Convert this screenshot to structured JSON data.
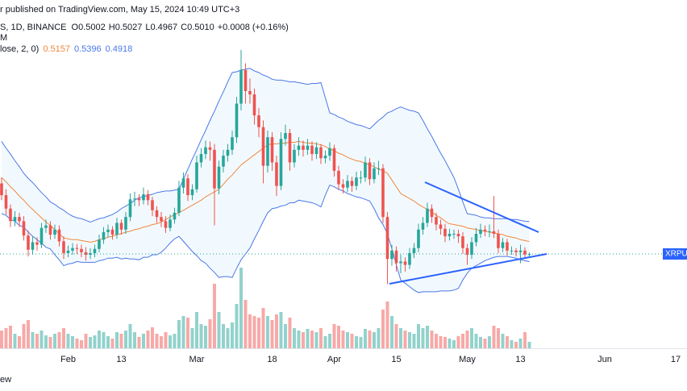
{
  "header": {
    "publisher_line": "r published on TradingView.com, May 15, 2024 10:49 UTC+3",
    "symbol": "S, 1D, BINANCE",
    "ohlc_labels": [
      "O",
      "H",
      "L",
      "C"
    ],
    "change": "+0.0008 (+0.16%)",
    "volume_label": "M",
    "bb_label": "lose, 2, 0)",
    "price_tag": "XRPUS",
    "footer": "ew"
  },
  "chart_data": {
    "type": "candlestick",
    "up_color": "#26a69a",
    "down_color": "#ef5350",
    "band_color": "#4a78e8",
    "basis_color": "#f0883e",
    "band_fill": "#2196f3",
    "xlim": [
      -0.36,
      154.55
    ],
    "ylim": [
      0.3906,
      0.8034
    ],
    "xticks": [
      {
        "value": 15,
        "label": "Feb"
      },
      {
        "value": 27,
        "label": "13"
      },
      {
        "value": 44,
        "label": "Mar"
      },
      {
        "value": 61,
        "label": "18"
      },
      {
        "value": 75,
        "label": "Apr"
      },
      {
        "value": 89,
        "label": "15"
      },
      {
        "value": 105,
        "label": "May"
      },
      {
        "value": 117,
        "label": "13"
      },
      {
        "value": 136,
        "label": "Jun"
      },
      {
        "value": 152,
        "label": "17"
      }
    ],
    "ohlc_value_labels": [
      "0.5002",
      "0.5027",
      "0.4967",
      "0.5010"
    ],
    "candles": [
      [
        0.585,
        0.592,
        0.565,
        0.571
      ],
      [
        0.571,
        0.578,
        0.548,
        0.555
      ],
      [
        0.555,
        0.56,
        0.533,
        0.54
      ],
      [
        0.54,
        0.552,
        0.534,
        0.545
      ],
      [
        0.545,
        0.55,
        0.533,
        0.54
      ],
      [
        0.54,
        0.546,
        0.517,
        0.523
      ],
      [
        0.523,
        0.529,
        0.498,
        0.506
      ],
      [
        0.506,
        0.522,
        0.5,
        0.515
      ],
      [
        0.515,
        0.521,
        0.505,
        0.512
      ],
      [
        0.512,
        0.538,
        0.508,
        0.532
      ],
      [
        0.532,
        0.542,
        0.526,
        0.535
      ],
      [
        0.535,
        0.54,
        0.518,
        0.524
      ],
      [
        0.524,
        0.536,
        0.519,
        0.53
      ],
      [
        0.53,
        0.535,
        0.51,
        0.516
      ],
      [
        0.516,
        0.522,
        0.495,
        0.502
      ],
      [
        0.502,
        0.511,
        0.497,
        0.505
      ],
      [
        0.505,
        0.514,
        0.5,
        0.508
      ],
      [
        0.508,
        0.513,
        0.501,
        0.507
      ],
      [
        0.507,
        0.512,
        0.497,
        0.503
      ],
      [
        0.503,
        0.509,
        0.493,
        0.5
      ],
      [
        0.5,
        0.508,
        0.495,
        0.502
      ],
      [
        0.502,
        0.512,
        0.497,
        0.507
      ],
      [
        0.507,
        0.524,
        0.503,
        0.518
      ],
      [
        0.518,
        0.533,
        0.513,
        0.527
      ],
      [
        0.527,
        0.536,
        0.521,
        0.53
      ],
      [
        0.53,
        0.534,
        0.518,
        0.524
      ],
      [
        0.524,
        0.544,
        0.519,
        0.538
      ],
      [
        0.538,
        0.542,
        0.524,
        0.53
      ],
      [
        0.53,
        0.551,
        0.525,
        0.545
      ],
      [
        0.545,
        0.573,
        0.54,
        0.566
      ],
      [
        0.566,
        0.575,
        0.558,
        0.567
      ],
      [
        0.567,
        0.572,
        0.558,
        0.565
      ],
      [
        0.565,
        0.58,
        0.56,
        0.572
      ],
      [
        0.572,
        0.577,
        0.559,
        0.565
      ],
      [
        0.565,
        0.569,
        0.546,
        0.553
      ],
      [
        0.553,
        0.558,
        0.538,
        0.545
      ],
      [
        0.545,
        0.551,
        0.533,
        0.54
      ],
      [
        0.54,
        0.546,
        0.526,
        0.532
      ],
      [
        0.532,
        0.548,
        0.528,
        0.542
      ],
      [
        0.542,
        0.556,
        0.537,
        0.55
      ],
      [
        0.55,
        0.588,
        0.546,
        0.58
      ],
      [
        0.58,
        0.598,
        0.573,
        0.591
      ],
      [
        0.591,
        0.596,
        0.564,
        0.571
      ],
      [
        0.571,
        0.584,
        0.565,
        0.578
      ],
      [
        0.578,
        0.618,
        0.574,
        0.61
      ],
      [
        0.61,
        0.627,
        0.604,
        0.62
      ],
      [
        0.62,
        0.636,
        0.614,
        0.628
      ],
      [
        0.628,
        0.635,
        0.612,
        0.625
      ],
      [
        0.625,
        0.632,
        0.535,
        0.579
      ],
      [
        0.579,
        0.612,
        0.572,
        0.605
      ],
      [
        0.605,
        0.625,
        0.598,
        0.618
      ],
      [
        0.618,
        0.632,
        0.611,
        0.625
      ],
      [
        0.625,
        0.648,
        0.619,
        0.64
      ],
      [
        0.64,
        0.688,
        0.633,
        0.68
      ],
      [
        0.68,
        0.744,
        0.672,
        0.72
      ],
      [
        0.72,
        0.728,
        0.68,
        0.695
      ],
      [
        0.695,
        0.71,
        0.68,
        0.691
      ],
      [
        0.691,
        0.698,
        0.655,
        0.666
      ],
      [
        0.666,
        0.675,
        0.64,
        0.652
      ],
      [
        0.652,
        0.66,
        0.585,
        0.606
      ],
      [
        0.606,
        0.648,
        0.598,
        0.64
      ],
      [
        0.64,
        0.646,
        0.6,
        0.61
      ],
      [
        0.61,
        0.618,
        0.57,
        0.582
      ],
      [
        0.582,
        0.646,
        0.577,
        0.638
      ],
      [
        0.638,
        0.655,
        0.63,
        0.645
      ],
      [
        0.645,
        0.65,
        0.6,
        0.61
      ],
      [
        0.61,
        0.632,
        0.604,
        0.625
      ],
      [
        0.625,
        0.64,
        0.618,
        0.63
      ],
      [
        0.63,
        0.636,
        0.617,
        0.625
      ],
      [
        0.625,
        0.638,
        0.619,
        0.63
      ],
      [
        0.63,
        0.635,
        0.612,
        0.62
      ],
      [
        0.62,
        0.634,
        0.614,
        0.628
      ],
      [
        0.628,
        0.632,
        0.608,
        0.615
      ],
      [
        0.615,
        0.624,
        0.609,
        0.618
      ],
      [
        0.618,
        0.634,
        0.612,
        0.627
      ],
      [
        0.627,
        0.631,
        0.593,
        0.6
      ],
      [
        0.6,
        0.606,
        0.577,
        0.584
      ],
      [
        0.584,
        0.59,
        0.573,
        0.58
      ],
      [
        0.58,
        0.595,
        0.575,
        0.588
      ],
      [
        0.588,
        0.593,
        0.575,
        0.582
      ],
      [
        0.582,
        0.599,
        0.577,
        0.592
      ],
      [
        0.592,
        0.6,
        0.585,
        0.592
      ],
      [
        0.592,
        0.617,
        0.587,
        0.61
      ],
      [
        0.61,
        0.615,
        0.583,
        0.59
      ],
      [
        0.59,
        0.61,
        0.585,
        0.603
      ],
      [
        0.603,
        0.612,
        0.595,
        0.603
      ],
      [
        0.603,
        0.608,
        0.538,
        0.545
      ],
      [
        0.545,
        0.551,
        0.465,
        0.495
      ],
      [
        0.495,
        0.512,
        0.487,
        0.505
      ],
      [
        0.505,
        0.51,
        0.48,
        0.49
      ],
      [
        0.49,
        0.5,
        0.478,
        0.492
      ],
      [
        0.492,
        0.497,
        0.48,
        0.488
      ],
      [
        0.488,
        0.508,
        0.483,
        0.502
      ],
      [
        0.502,
        0.514,
        0.496,
        0.508
      ],
      [
        0.508,
        0.537,
        0.503,
        0.53
      ],
      [
        0.53,
        0.545,
        0.524,
        0.538
      ],
      [
        0.538,
        0.562,
        0.533,
        0.555
      ],
      [
        0.555,
        0.56,
        0.538,
        0.545
      ],
      [
        0.545,
        0.55,
        0.529,
        0.536
      ],
      [
        0.536,
        0.542,
        0.524,
        0.531
      ],
      [
        0.531,
        0.537,
        0.515,
        0.522
      ],
      [
        0.522,
        0.531,
        0.517,
        0.525
      ],
      [
        0.525,
        0.53,
        0.519,
        0.525
      ],
      [
        0.525,
        0.53,
        0.514,
        0.522
      ],
      [
        0.522,
        0.527,
        0.501,
        0.508
      ],
      [
        0.508,
        0.513,
        0.488,
        0.5
      ],
      [
        0.5,
        0.521,
        0.495,
        0.515
      ],
      [
        0.515,
        0.532,
        0.51,
        0.525
      ],
      [
        0.525,
        0.537,
        0.52,
        0.53
      ],
      [
        0.53,
        0.535,
        0.522,
        0.528
      ],
      [
        0.528,
        0.536,
        0.521,
        0.528
      ],
      [
        0.528,
        0.57,
        0.52,
        0.525
      ],
      [
        0.525,
        0.53,
        0.502,
        0.508
      ],
      [
        0.508,
        0.52,
        0.503,
        0.515
      ],
      [
        0.515,
        0.519,
        0.499,
        0.505
      ],
      [
        0.505,
        0.51,
        0.5,
        0.505
      ],
      [
        0.505,
        0.508,
        0.498,
        0.503
      ],
      [
        0.503,
        0.512,
        0.49,
        0.505
      ],
      [
        0.505,
        0.509,
        0.496,
        0.5002
      ],
      [
        0.5002,
        0.5027,
        0.4967,
        0.501
      ]
    ],
    "volume": [
      22,
      25,
      28,
      18,
      15,
      30,
      35,
      20,
      18,
      22,
      16,
      14,
      18,
      20,
      25,
      18,
      15,
      12,
      10,
      18,
      14,
      16,
      22,
      20,
      15,
      12,
      20,
      18,
      22,
      30,
      20,
      14,
      18,
      22,
      26,
      18,
      15,
      20,
      16,
      18,
      35,
      40,
      38,
      25,
      45,
      30,
      28,
      36,
      80,
      45,
      30,
      25,
      32,
      55,
      100,
      60,
      42,
      40,
      38,
      50,
      40,
      35,
      42,
      45,
      30,
      38,
      25,
      22,
      20,
      24,
      22,
      20,
      25,
      15,
      18,
      30,
      28,
      22,
      20,
      18,
      15,
      14,
      24,
      22,
      20,
      25,
      48,
      58,
      40,
      30,
      25,
      22,
      20,
      18,
      30,
      25,
      28,
      22,
      18,
      15,
      14,
      12,
      10,
      15,
      18,
      22,
      25,
      18,
      14,
      12,
      15,
      28,
      25,
      18,
      15,
      10,
      8,
      12,
      20,
      8
    ],
    "bb_upper": [
      0.635,
      0.627,
      0.62,
      0.612,
      0.605,
      0.597,
      0.591,
      0.586,
      0.58,
      0.574,
      0.569,
      0.563,
      0.56,
      0.556,
      0.553,
      0.549,
      0.546,
      0.544,
      0.543,
      0.541,
      0.539,
      0.541,
      0.543,
      0.544,
      0.546,
      0.548,
      0.551,
      0.555,
      0.558,
      0.561,
      0.565,
      0.568,
      0.569,
      0.571,
      0.572,
      0.574,
      0.575,
      0.576,
      0.576,
      0.577,
      0.578,
      0.59,
      0.602,
      0.614,
      0.625,
      0.637,
      0.648,
      0.66,
      0.671,
      0.683,
      0.694,
      0.706,
      0.717,
      0.718,
      0.72,
      0.721,
      0.722,
      0.719,
      0.717,
      0.714,
      0.712,
      0.709,
      0.708,
      0.708,
      0.707,
      0.706,
      0.706,
      0.705,
      0.704,
      0.703,
      0.704,
      0.704,
      0.705,
      0.687,
      0.669,
      0.667,
      0.664,
      0.662,
      0.659,
      0.657,
      0.655,
      0.654,
      0.652,
      0.65,
      0.655,
      0.66,
      0.664,
      0.669,
      0.671,
      0.674,
      0.676,
      0.674,
      0.672,
      0.671,
      0.669,
      0.66,
      0.65,
      0.641,
      0.631,
      0.621,
      0.612,
      0.602,
      0.592,
      0.578,
      0.563,
      0.549,
      0.548,
      0.547,
      0.545,
      0.544,
      0.544,
      0.543,
      0.543,
      0.543,
      0.543,
      0.542,
      0.542,
      0.541,
      0.54,
      0.5396
    ],
    "bb_basis": [
      0.592,
      0.587,
      0.581,
      0.576,
      0.57,
      0.565,
      0.559,
      0.554,
      0.549,
      0.544,
      0.539,
      0.535,
      0.53,
      0.525,
      0.52,
      0.519,
      0.518,
      0.518,
      0.517,
      0.516,
      0.515,
      0.516,
      0.518,
      0.519,
      0.521,
      0.522,
      0.524,
      0.525,
      0.527,
      0.528,
      0.53,
      0.531,
      0.533,
      0.534,
      0.536,
      0.537,
      0.539,
      0.542,
      0.545,
      0.548,
      0.55,
      0.553,
      0.556,
      0.559,
      0.562,
      0.565,
      0.569,
      0.572,
      0.575,
      0.578,
      0.584,
      0.59,
      0.595,
      0.601,
      0.607,
      0.611,
      0.615,
      0.619,
      0.623,
      0.627,
      0.631,
      0.632,
      0.632,
      0.633,
      0.633,
      0.634,
      0.634,
      0.635,
      0.634,
      0.633,
      0.633,
      0.632,
      0.631,
      0.629,
      0.626,
      0.624,
      0.621,
      0.619,
      0.616,
      0.614,
      0.612,
      0.611,
      0.609,
      0.607,
      0.605,
      0.602,
      0.6,
      0.597,
      0.589,
      0.581,
      0.573,
      0.57,
      0.567,
      0.564,
      0.56,
      0.557,
      0.554,
      0.551,
      0.547,
      0.544,
      0.54,
      0.537,
      0.536,
      0.535,
      0.534,
      0.532,
      0.531,
      0.53,
      0.529,
      0.528,
      0.527,
      0.526,
      0.525,
      0.524,
      0.522,
      0.521,
      0.52,
      0.518,
      0.517,
      0.5157
    ],
    "bb_lower": [
      0.549,
      0.547,
      0.542,
      0.54,
      0.535,
      0.533,
      0.527,
      0.522,
      0.518,
      0.514,
      0.509,
      0.507,
      0.5,
      0.494,
      0.487,
      0.489,
      0.49,
      0.492,
      0.491,
      0.491,
      0.491,
      0.491,
      0.493,
      0.494,
      0.496,
      0.496,
      0.497,
      0.495,
      0.496,
      0.495,
      0.495,
      0.494,
      0.497,
      0.497,
      0.5,
      0.5,
      0.503,
      0.508,
      0.514,
      0.519,
      0.522,
      0.516,
      0.51,
      0.504,
      0.499,
      0.493,
      0.49,
      0.484,
      0.479,
      0.473,
      0.474,
      0.474,
      0.473,
      0.484,
      0.494,
      0.501,
      0.508,
      0.519,
      0.529,
      0.54,
      0.55,
      0.555,
      0.556,
      0.558,
      0.559,
      0.562,
      0.562,
      0.565,
      0.564,
      0.563,
      0.562,
      0.56,
      0.557,
      0.571,
      0.583,
      0.581,
      0.578,
      0.576,
      0.573,
      0.571,
      0.569,
      0.568,
      0.566,
      0.564,
      0.555,
      0.544,
      0.536,
      0.525,
      0.507,
      0.488,
      0.47,
      0.466,
      0.462,
      0.458,
      0.455,
      0.456,
      0.456,
      0.456,
      0.456,
      0.457,
      0.457,
      0.457,
      0.458,
      0.46,
      0.47,
      0.478,
      0.484,
      0.487,
      0.49,
      0.493,
      0.495,
      0.497,
      0.498,
      0.498,
      0.498,
      0.497,
      0.496,
      0.494,
      0.493,
      0.4918
    ]
  }
}
